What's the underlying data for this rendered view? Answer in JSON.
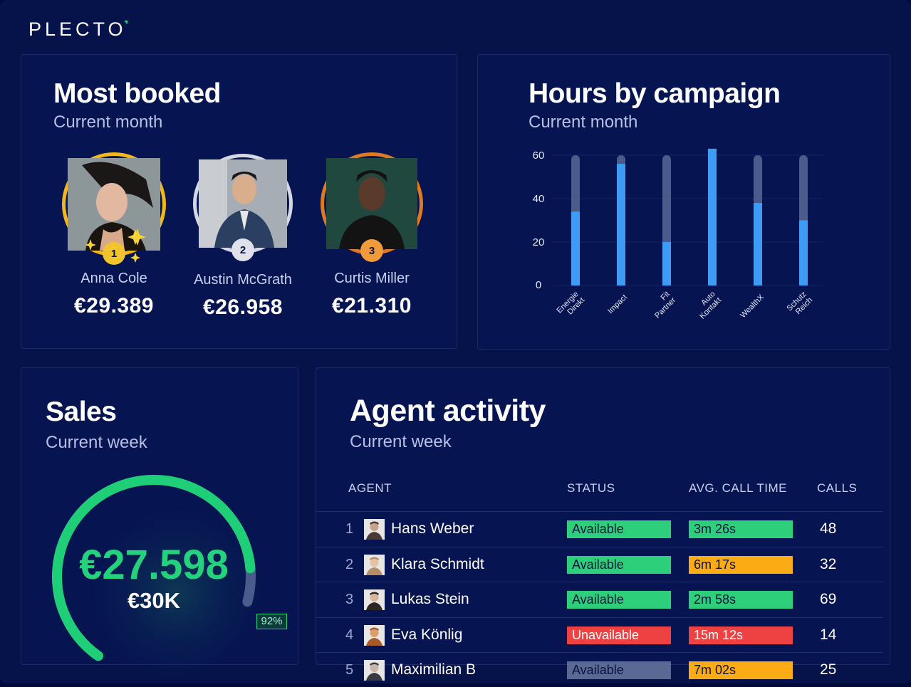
{
  "brand": {
    "name": "PLECTO"
  },
  "most_booked": {
    "title": "Most booked",
    "subtitle": "Current month",
    "podium": [
      {
        "rank": "1",
        "name": "Anna Cole",
        "value": "€29.389"
      },
      {
        "rank": "2",
        "name": "Austin McGrath",
        "value": "€26.958"
      },
      {
        "rank": "3",
        "name": "Curtis Miller",
        "value": "€21.310"
      }
    ]
  },
  "hours": {
    "title": "Hours by campaign",
    "subtitle": "Current month",
    "chart_data": {
      "type": "bar",
      "categories": [
        "Energie Direkt",
        "Impact",
        "Fit Partner",
        "Auto Kontakt",
        "WealthX",
        "Schutz Reich"
      ],
      "values": [
        34,
        56,
        20,
        63,
        38,
        30
      ],
      "ylim": [
        0,
        66
      ],
      "yticks": [
        "0",
        "20",
        "40",
        "60"
      ],
      "grid": true,
      "colors": {
        "bar": "#3d9cf5",
        "track": "#4a5c8c"
      }
    }
  },
  "sales": {
    "title": "Sales",
    "subtitle": "Current week",
    "value": "€27.598",
    "target": "€30K",
    "percent_label": "92%",
    "progress": 0.92,
    "colors": {
      "arc": "#1fcf77",
      "track": "#4a5c8c"
    }
  },
  "agents": {
    "title": "Agent activity",
    "subtitle": "Current week",
    "columns": {
      "agent": "AGENT",
      "status": "STATUS",
      "avg": "AVG. CALL TIME",
      "calls": "CALLS"
    },
    "rows": [
      {
        "n": "1",
        "name": "Hans Weber",
        "status": "Available",
        "status_color": "#2ecf7a",
        "time": "3m 26s",
        "time_color": "#2ecf7a",
        "calls": "48"
      },
      {
        "n": "2",
        "name": "Klara Schmidt",
        "status": "Available",
        "status_color": "#2ecf7a",
        "time": "6m 17s",
        "time_color": "#fbab14",
        "calls": "32"
      },
      {
        "n": "3",
        "name": "Lukas Stein",
        "status": "Available",
        "status_color": "#2ecf7a",
        "time": "2m 58s",
        "time_color": "#2ecf7a",
        "calls": "69"
      },
      {
        "n": "4",
        "name": "Eva Könlig",
        "status": "Unavailable",
        "status_color": "#ee4242",
        "time": "15m 12s",
        "time_color": "#ee4242",
        "calls": "14"
      },
      {
        "n": "5",
        "name": "Maximilian B",
        "status": "Available",
        "status_color": "#5a6894",
        "time": "7m 02s",
        "time_color": "#fbab14",
        "calls": "25"
      }
    ]
  }
}
